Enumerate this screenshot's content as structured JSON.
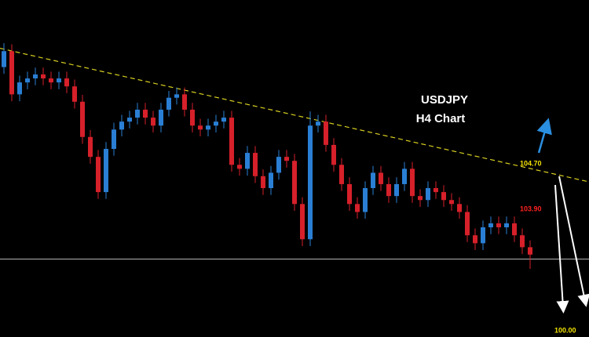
{
  "chart_data": {
    "type": "candlestick",
    "title": "USDJPY",
    "subtitle": "H4 Chart",
    "ylim": [
      101.65,
      107.58
    ],
    "up_color": "#2a7fd4",
    "down_color": "#d6202a",
    "trendline": [
      106.73,
      104.38
    ],
    "trendline_color": "#d8d020",
    "hline": 103.02,
    "hline_color": "#bbbbbb",
    "annotations": [
      {
        "text": "104.70",
        "color": "#f0e000"
      },
      {
        "text": "103.90",
        "color": "#ff2020"
      },
      {
        "text": "100.00",
        "color": "#f0e000"
      }
    ],
    "open": [
      106.4,
      106.68,
      105.92,
      106.13,
      106.2,
      106.27,
      106.2,
      106.13,
      106.2,
      106.06,
      105.79,
      105.17,
      104.82,
      104.2,
      104.96,
      105.3,
      105.44,
      105.51,
      105.65,
      105.51,
      105.37,
      105.65,
      105.86,
      105.92,
      105.65,
      105.37,
      105.3,
      105.37,
      105.44,
      105.51,
      104.68,
      104.61,
      104.89,
      104.48,
      104.27,
      104.54,
      104.82,
      104.75,
      103.99,
      103.37,
      105.37,
      105.44,
      105.03,
      104.68,
      104.34,
      103.99,
      103.85,
      104.27,
      104.54,
      104.34,
      104.13,
      104.34,
      104.61,
      104.13,
      104.06,
      104.27,
      104.2,
      104.06,
      103.99,
      103.85,
      103.44,
      103.3,
      103.58,
      103.65,
      103.58,
      103.65,
      103.44,
      103.23
    ],
    "high": [
      106.82,
      106.8,
      106.25,
      106.32,
      106.39,
      106.39,
      106.32,
      106.32,
      106.32,
      106.18,
      105.91,
      105.29,
      104.94,
      105.08,
      105.42,
      105.56,
      105.63,
      105.77,
      105.77,
      105.63,
      105.77,
      105.98,
      106.04,
      106.04,
      105.77,
      105.49,
      105.49,
      105.56,
      105.63,
      105.63,
      104.8,
      105.01,
      105.01,
      104.6,
      104.66,
      104.94,
      104.94,
      104.87,
      104.11,
      105.62,
      105.56,
      105.56,
      105.15,
      104.8,
      104.46,
      104.11,
      104.39,
      104.66,
      104.66,
      104.46,
      104.46,
      104.73,
      104.73,
      104.25,
      104.39,
      104.39,
      104.32,
      104.18,
      104.11,
      103.97,
      103.56,
      103.7,
      103.77,
      103.77,
      103.77,
      103.77,
      103.56,
      103.35
    ],
    "low": [
      106.28,
      105.8,
      105.8,
      106.01,
      106.08,
      106.08,
      106.01,
      106.01,
      105.94,
      105.67,
      105.05,
      104.7,
      104.08,
      104.08,
      104.84,
      105.18,
      105.32,
      105.39,
      105.39,
      105.25,
      105.25,
      105.53,
      105.74,
      105.53,
      105.25,
      105.18,
      105.18,
      105.25,
      105.32,
      104.56,
      104.49,
      104.49,
      104.36,
      104.15,
      104.15,
      104.42,
      104.63,
      103.87,
      103.25,
      103.25,
      105.25,
      104.91,
      104.56,
      104.22,
      103.87,
      103.73,
      103.73,
      104.15,
      104.22,
      104.01,
      104.01,
      104.22,
      104.01,
      103.94,
      103.94,
      104.08,
      103.94,
      103.87,
      103.73,
      103.32,
      103.18,
      103.18,
      103.46,
      103.46,
      103.46,
      103.32,
      103.11,
      102.85
    ],
    "close": [
      106.68,
      105.92,
      106.13,
      106.2,
      106.27,
      106.2,
      106.13,
      106.2,
      106.06,
      105.79,
      105.17,
      104.82,
      104.2,
      104.96,
      105.3,
      105.44,
      105.51,
      105.65,
      105.51,
      105.37,
      105.65,
      105.86,
      105.92,
      105.65,
      105.37,
      105.3,
      105.37,
      105.44,
      105.51,
      104.68,
      104.61,
      104.89,
      104.48,
      104.27,
      104.54,
      104.82,
      104.75,
      103.99,
      103.37,
      105.37,
      105.44,
      105.03,
      104.68,
      104.34,
      103.99,
      103.85,
      104.27,
      104.54,
      104.34,
      104.13,
      104.34,
      104.61,
      104.13,
      104.06,
      104.27,
      104.2,
      104.06,
      103.99,
      103.85,
      103.44,
      103.3,
      103.58,
      103.65,
      103.58,
      103.65,
      103.44,
      103.23,
      103.1
    ]
  }
}
